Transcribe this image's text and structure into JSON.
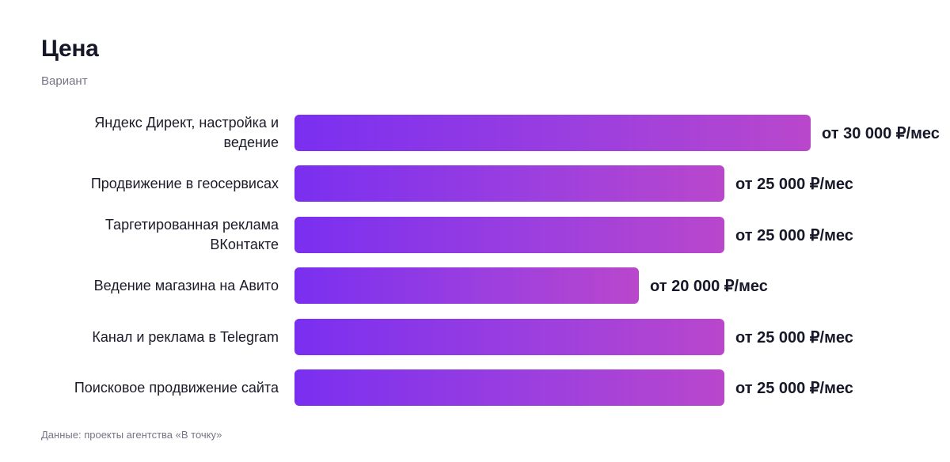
{
  "chart_data": {
    "type": "bar",
    "orientation": "horizontal",
    "title": "Цена",
    "subtitle": "Вариант",
    "categories": [
      "Яндекс Директ, настройка и ведение",
      "Продвижение в геосервисах",
      "Таргетированная реклама ВКонтакте",
      "Ведение магазина на Авито",
      "Канал и реклама в Telegram",
      "Поисковое продвижение сайта"
    ],
    "values": [
      30000,
      25000,
      25000,
      20000,
      25000,
      25000
    ],
    "value_labels": [
      "от 30 000 ₽/мес",
      "от 25 000 ₽/мес",
      "от 25 000 ₽/мес",
      "от 20 000 ₽/мес",
      "от 25 000 ₽/мес",
      "от 25 000 ₽/мес"
    ],
    "xlim": [
      0,
      30000
    ],
    "grid": false,
    "colors": {
      "bar_start": "#7a2ff0",
      "bar_end": "#b947cc"
    }
  },
  "footer": {
    "source": "Данные: проекты агентства «В точку»"
  }
}
